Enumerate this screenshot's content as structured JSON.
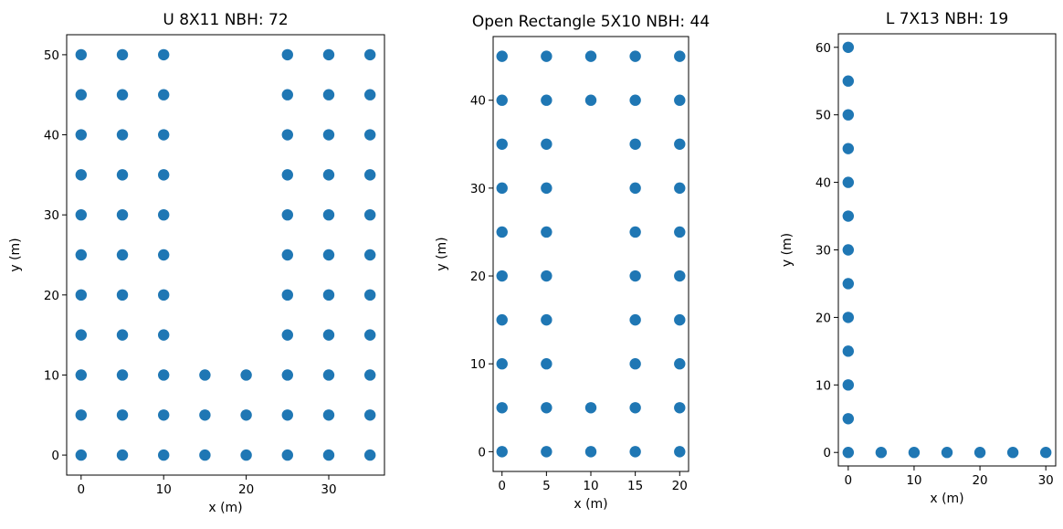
{
  "chart_data": [
    {
      "type": "scatter",
      "title": "U 8X11 NBH: 72",
      "xlabel": "x (m)",
      "ylabel": "y (m)",
      "color": "#1f77b4",
      "grid": false,
      "xlim": [
        -1.75,
        36.75
      ],
      "ylim": [
        -2.5,
        52.5
      ],
      "xticks": [
        0,
        10,
        20,
        30
      ],
      "yticks": [
        0,
        10,
        20,
        30,
        40,
        50
      ],
      "points": [
        [
          0,
          0
        ],
        [
          5,
          0
        ],
        [
          10,
          0
        ],
        [
          15,
          0
        ],
        [
          20,
          0
        ],
        [
          25,
          0
        ],
        [
          30,
          0
        ],
        [
          35,
          0
        ],
        [
          0,
          5
        ],
        [
          5,
          5
        ],
        [
          10,
          5
        ],
        [
          15,
          5
        ],
        [
          20,
          5
        ],
        [
          25,
          5
        ],
        [
          30,
          5
        ],
        [
          35,
          5
        ],
        [
          0,
          10
        ],
        [
          5,
          10
        ],
        [
          10,
          10
        ],
        [
          15,
          10
        ],
        [
          20,
          10
        ],
        [
          25,
          10
        ],
        [
          30,
          10
        ],
        [
          35,
          10
        ],
        [
          0,
          15
        ],
        [
          5,
          15
        ],
        [
          10,
          15
        ],
        [
          25,
          15
        ],
        [
          30,
          15
        ],
        [
          35,
          15
        ],
        [
          0,
          20
        ],
        [
          5,
          20
        ],
        [
          10,
          20
        ],
        [
          25,
          20
        ],
        [
          30,
          20
        ],
        [
          35,
          20
        ],
        [
          0,
          25
        ],
        [
          5,
          25
        ],
        [
          10,
          25
        ],
        [
          25,
          25
        ],
        [
          30,
          25
        ],
        [
          35,
          25
        ],
        [
          0,
          30
        ],
        [
          5,
          30
        ],
        [
          10,
          30
        ],
        [
          25,
          30
        ],
        [
          30,
          30
        ],
        [
          35,
          30
        ],
        [
          0,
          35
        ],
        [
          5,
          35
        ],
        [
          10,
          35
        ],
        [
          25,
          35
        ],
        [
          30,
          35
        ],
        [
          35,
          35
        ],
        [
          0,
          40
        ],
        [
          5,
          40
        ],
        [
          10,
          40
        ],
        [
          25,
          40
        ],
        [
          30,
          40
        ],
        [
          35,
          40
        ],
        [
          0,
          45
        ],
        [
          5,
          45
        ],
        [
          10,
          45
        ],
        [
          25,
          45
        ],
        [
          30,
          45
        ],
        [
          35,
          45
        ],
        [
          0,
          50
        ],
        [
          5,
          50
        ],
        [
          10,
          50
        ],
        [
          25,
          50
        ],
        [
          30,
          50
        ],
        [
          35,
          50
        ]
      ]
    },
    {
      "type": "scatter",
      "title": "Open Rectangle 5X10 NBH: 44",
      "xlabel": "x (m)",
      "ylabel": "y (m)",
      "color": "#1f77b4",
      "grid": false,
      "xlim": [
        -1,
        21
      ],
      "ylim": [
        -2.25,
        47.25
      ],
      "xticks": [
        0,
        5,
        10,
        15,
        20
      ],
      "yticks": [
        0,
        10,
        20,
        30,
        40
      ],
      "points": [
        [
          0,
          0
        ],
        [
          5,
          0
        ],
        [
          10,
          0
        ],
        [
          15,
          0
        ],
        [
          20,
          0
        ],
        [
          0,
          5
        ],
        [
          5,
          5
        ],
        [
          10,
          5
        ],
        [
          15,
          5
        ],
        [
          20,
          5
        ],
        [
          0,
          10
        ],
        [
          5,
          10
        ],
        [
          15,
          10
        ],
        [
          20,
          10
        ],
        [
          0,
          15
        ],
        [
          5,
          15
        ],
        [
          15,
          15
        ],
        [
          20,
          15
        ],
        [
          0,
          20
        ],
        [
          5,
          20
        ],
        [
          15,
          20
        ],
        [
          20,
          20
        ],
        [
          0,
          25
        ],
        [
          5,
          25
        ],
        [
          15,
          25
        ],
        [
          20,
          25
        ],
        [
          0,
          30
        ],
        [
          5,
          30
        ],
        [
          15,
          30
        ],
        [
          20,
          30
        ],
        [
          0,
          35
        ],
        [
          5,
          35
        ],
        [
          15,
          35
        ],
        [
          20,
          35
        ],
        [
          0,
          40
        ],
        [
          5,
          40
        ],
        [
          10,
          40
        ],
        [
          15,
          40
        ],
        [
          20,
          40
        ],
        [
          0,
          45
        ],
        [
          5,
          45
        ],
        [
          10,
          45
        ],
        [
          15,
          45
        ],
        [
          20,
          45
        ]
      ]
    },
    {
      "type": "scatter",
      "title": "L 7X13 NBH: 19",
      "xlabel": "x (m)",
      "ylabel": "y (m)",
      "color": "#1f77b4",
      "grid": false,
      "xlim": [
        -1.5,
        31.5
      ],
      "ylim": [
        -2,
        62
      ],
      "xticks": [
        0,
        10,
        20,
        30
      ],
      "yticks": [
        0,
        10,
        20,
        30,
        40,
        50,
        60
      ],
      "points": [
        [
          0,
          0
        ],
        [
          5,
          0
        ],
        [
          10,
          0
        ],
        [
          15,
          0
        ],
        [
          20,
          0
        ],
        [
          25,
          0
        ],
        [
          30,
          0
        ],
        [
          0,
          5
        ],
        [
          0,
          10
        ],
        [
          0,
          15
        ],
        [
          0,
          20
        ],
        [
          0,
          25
        ],
        [
          0,
          30
        ],
        [
          0,
          35
        ],
        [
          0,
          40
        ],
        [
          0,
          45
        ],
        [
          0,
          50
        ],
        [
          0,
          55
        ],
        [
          0,
          60
        ]
      ]
    }
  ]
}
